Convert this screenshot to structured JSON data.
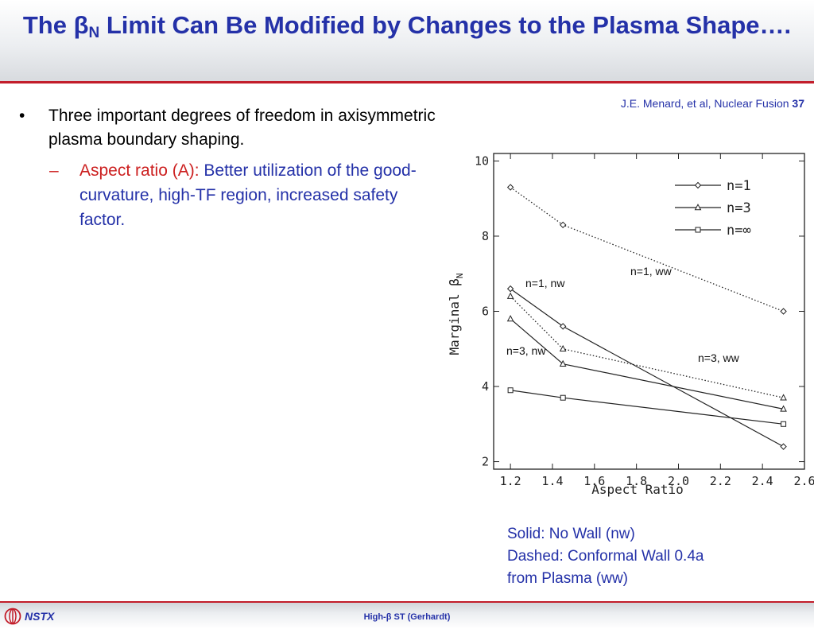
{
  "slide": {
    "title_prefix": "The ",
    "title_beta": "β",
    "title_sub": "N",
    "title_rest": " Limit Can Be Modified by Changes to the Plasma Shape….",
    "citation": "J.E. Menard, et al, Nuclear Fusion ",
    "citation_vol": "37",
    "bullet_marker": "•",
    "bullet1": "Three important degrees of freedom in axisymmetric plasma boundary shaping.",
    "sub_marker": "–",
    "sub_label": "Aspect ratio (A): ",
    "sub_text": "Better utilization of the good-curvature, high-TF region, increased safety factor.",
    "note_lines": [
      "Solid: No Wall (nw)",
      "Dashed: Conformal Wall 0.4a",
      "from Plasma (ww)"
    ]
  },
  "footer": {
    "logo_text": "NSTX",
    "center_text": "High-β ST (Gerhardt)"
  },
  "chart_data": {
    "type": "line",
    "xlabel": "Aspect Ratio",
    "ylabel": "Marginal β",
    "ylabel_sub": "N",
    "xlim": [
      1.12,
      2.6
    ],
    "ylim": [
      1.8,
      10.2
    ],
    "x_ticks": [
      1.2,
      1.4,
      1.6,
      1.8,
      2.0,
      2.2,
      2.4,
      2.6
    ],
    "x_tick_labels": [
      "1.2",
      "1.4",
      "1.6",
      "1.8",
      "2.0",
      "2.2",
      "2.4",
      "2.6"
    ],
    "y_ticks": [
      2,
      4,
      6,
      8,
      10
    ],
    "y_tick_labels": [
      "2",
      "4",
      "6",
      "8",
      "10"
    ],
    "legend_position": "top-right",
    "series": [
      {
        "name": "n=1",
        "marker": "diamond",
        "dash": "solid",
        "x": [
          1.2,
          1.45,
          2.5
        ],
        "y": [
          6.6,
          5.6,
          2.4
        ]
      },
      {
        "name": "n=1",
        "marker": "diamond",
        "dash": "dotted",
        "x": [
          1.2,
          1.45,
          2.5
        ],
        "y": [
          9.3,
          8.3,
          6.0
        ]
      },
      {
        "name": "n=3",
        "marker": "triangle",
        "dash": "solid",
        "x": [
          1.2,
          1.45,
          2.5
        ],
        "y": [
          5.8,
          4.6,
          3.4
        ]
      },
      {
        "name": "n=3",
        "marker": "triangle",
        "dash": "dotted",
        "x": [
          1.2,
          1.45,
          2.5
        ],
        "y": [
          6.4,
          5.0,
          3.7
        ]
      },
      {
        "name": "n=∞",
        "marker": "square",
        "dash": "solid",
        "x": [
          1.2,
          1.45,
          2.5
        ],
        "y": [
          3.9,
          3.7,
          3.0
        ]
      }
    ],
    "legend": [
      {
        "label": "n=1",
        "marker": "diamond"
      },
      {
        "label": "n=3",
        "marker": "triangle"
      },
      {
        "label": "n=∞",
        "marker": "square"
      }
    ],
    "annotations": [
      {
        "text": "n=1, ww"
      },
      {
        "text": "n=1, nw"
      },
      {
        "text": "n=3, nw"
      },
      {
        "text": "n=3, ww"
      }
    ]
  }
}
